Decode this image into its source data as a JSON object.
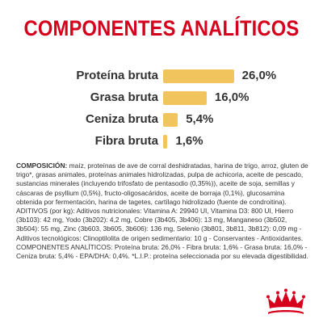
{
  "title": "COMPONENTES ANALÍTICOS",
  "chart_data": {
    "type": "bar",
    "orientation": "horizontal",
    "categories": [
      "Proteína bruta",
      "Grasa bruta",
      "Ceniza bruta",
      "Fibra bruta"
    ],
    "values": [
      26.0,
      16.0,
      5.4,
      1.6
    ],
    "value_labels": [
      "26,0%",
      "16,0%",
      "5,4%",
      "1,6%"
    ],
    "unit": "%",
    "bar_color": "#f2c45d",
    "title": "COMPONENTES ANALÍTICOS",
    "xlabel": "",
    "ylabel": ""
  },
  "composition": {
    "heading": "COMPOSICIÓN:",
    "text": " maíz, proteínas de ave de corral deshidratadas, harina de trigo, arroz, gluten de trigo*, grasas animales, proteínas animales hidrolizadas, pulpa de achicoria, aceite de pescado, sustancias minerales (incluyendo trifosfato de pentasodio (0,35%)), aceite de soja, semillas y cáscaras de psyllium (0,5%), fructo-oligosacáridos, aceite de borraja (0,1%), glucosamina obtenida por fermentación, harina de tagetes, cartílago hidrolizado (fuente de condroitina). ADITIVOS (por kg): Aditivos nutricionales: Vitamina A: 29940 UI, Vitamina D3: 800 UI, Hierro (3b103): 42 mg, Yodo (3b202): 4,2 mg, Cobre (3b405, 3b406): 13 mg, Manganeso (3b502, 3b504): 55 mg, Zinc (3b603, 3b605, 3b606): 136 mg, Selenio (3b801, 3b811, 3b812): 0,09 mg - Aditivos tecnológicos: Clinoptilolita de origen sedimentario: 10 g - Conservantes - Antioxidantes. COMPONENTES ANALÍTICOS: Proteína bruta: 26,0% - Fibra bruta: 1,6% - Grasa bruta: 16,0% - Ceniza bruta: 5,4% - EPA/DHA: 0,4%. *L.I.P.: proteína seleccionada por su elevada digestibilidad."
  },
  "logo": {
    "brand": "Royal Canin",
    "icon": "royal-canin-crown-logo-icon",
    "color": "#d6001c"
  }
}
